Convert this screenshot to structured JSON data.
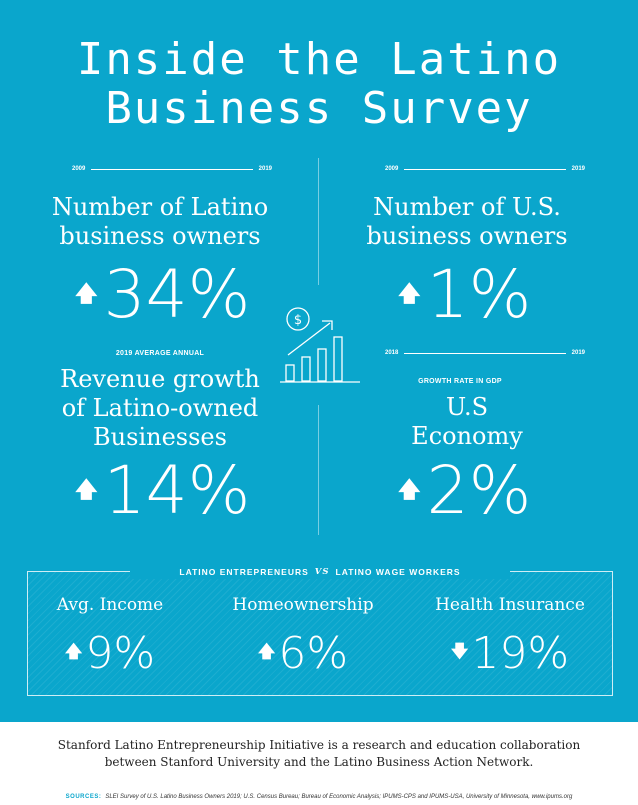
{
  "title": {
    "line1": "Inside the Latino",
    "line2": "Business Survey"
  },
  "stats": [
    {
      "range_start": "2009",
      "range_end": "2019",
      "label1": "Number of Latino",
      "label2": "business owners",
      "direction": "up",
      "value": "34%"
    },
    {
      "range_start": "2009",
      "range_end": "2019",
      "label1": "Number of U.S.",
      "label2": "business owners",
      "direction": "up",
      "value": "1%"
    },
    {
      "caption": "2019 AVERAGE ANNUAL",
      "label1": "Revenue growth",
      "label2": "of Latino-owned",
      "label3": "Businesses",
      "direction": "up",
      "value": "14%"
    },
    {
      "range_start": "2018",
      "range_end": "2019",
      "caption": "GROWTH RATE IN GDP",
      "label1": "U.S",
      "label2": "Economy",
      "direction": "up",
      "value": "2%"
    }
  ],
  "comparison": {
    "head_left": "LATINO ENTREPRENEURS",
    "head_vs": "VS",
    "head_right": "LATINO WAGE WORKERS",
    "items": [
      {
        "label": "Avg. Income",
        "direction": "up",
        "value": "9%"
      },
      {
        "label": "Homeownership",
        "direction": "up",
        "value": "6%"
      },
      {
        "label": "Health Insurance",
        "direction": "down",
        "value": "19%"
      }
    ]
  },
  "arrows": {
    "up": "🡅",
    "down": "🡇"
  },
  "footer": {
    "line1": "Stanford Latino Entrepreneurship Initiative is a research and education collaboration",
    "line2": "between Stanford University and the Latino Business Action Network.",
    "sources_label": "SOURCES:",
    "sources": "SLEI Survey of U.S. Latino Business Owners 2019; U.S. Census Bureau; Bureau of Economic Analysis; IPUMS-CPS and IPUMS-USA, University of Minnesota, www.ipums.org"
  },
  "colors": {
    "brand": "#0aa6cc"
  }
}
